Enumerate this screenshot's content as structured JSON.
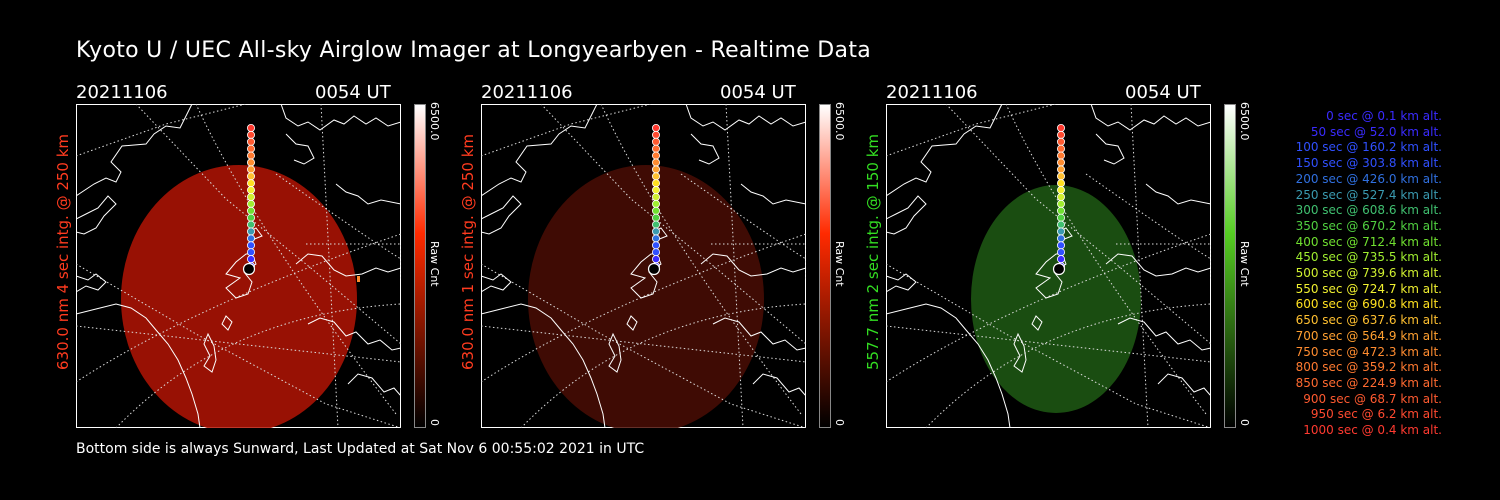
{
  "title": "Kyoto U / UEC All-sky Airglow Imager at Longyearbyen - Realtime Data",
  "footer": "Bottom side is always Sunward, Last Updated at Sat Nov  6 00:55:02 2021 in UTC",
  "panels": [
    {
      "date": "20211106",
      "time": "0054 UT",
      "side_label": "630.0 nm 4 sec intg. @ 250 km",
      "label_color": "#ff3b1f",
      "glow_color": "#b31405",
      "glow_opacity": 0.85,
      "cb_max": "6500.0",
      "cb_min": "0",
      "cb_unit": "Raw Cnt",
      "cb_color": "#ff2a00"
    },
    {
      "date": "20211106",
      "time": "0054 UT",
      "side_label": "630.0 nm 1 sec intg. @ 250 km",
      "label_color": "#ff3b1f",
      "glow_color": "#4a0d05",
      "glow_opacity": 0.85,
      "cb_max": "6500.0",
      "cb_min": "0",
      "cb_unit": "Raw Cnt",
      "cb_color": "#ff2a00"
    },
    {
      "date": "20211106",
      "time": "0054 UT",
      "side_label": "557.7 nm 2 sec intg. @ 150 km",
      "label_color": "#33dd22",
      "glow_color": "#1f5a14",
      "glow_opacity": 0.85,
      "cb_max": "6500.0",
      "cb_min": "0",
      "cb_unit": "Raw Cnt",
      "cb_color": "#55cc22"
    }
  ],
  "legend": [
    {
      "text": "0 sec @    0.1 km alt.",
      "color": "#3a2bff"
    },
    {
      "text": "50 sec @   52.0 km alt.",
      "color": "#3a2bff"
    },
    {
      "text": "100 sec @  160.2 km alt.",
      "color": "#3050ff"
    },
    {
      "text": "150 sec @  303.8 km alt.",
      "color": "#3050ff"
    },
    {
      "text": "200 sec @  426.0 km alt.",
      "color": "#3070e0"
    },
    {
      "text": "250 sec @  527.4 km alt.",
      "color": "#3a9ab0"
    },
    {
      "text": "300 sec @  608.6 km alt.",
      "color": "#40c070"
    },
    {
      "text": "350 sec @  670.2 km alt.",
      "color": "#50d040"
    },
    {
      "text": "400 sec @  712.4 km alt.",
      "color": "#70e030"
    },
    {
      "text": "450 sec @  735.5 km alt.",
      "color": "#a0ee30"
    },
    {
      "text": "500 sec @  739.6 km alt.",
      "color": "#d0f030"
    },
    {
      "text": "550 sec @  724.7 km alt.",
      "color": "#f0f030"
    },
    {
      "text": "600 sec @  690.8 km alt.",
      "color": "#ffe020"
    },
    {
      "text": "650 sec @  637.6 km alt.",
      "color": "#ffc030"
    },
    {
      "text": "700 sec @  564.9 km alt.",
      "color": "#ffa030"
    },
    {
      "text": "750 sec @  472.3 km alt.",
      "color": "#ff8c30"
    },
    {
      "text": "800 sec @  359.2 km alt.",
      "color": "#ff7a30"
    },
    {
      "text": "850 sec @  224.9 km alt.",
      "color": "#ff6a30"
    },
    {
      "text": "900 sec @   68.7 km alt.",
      "color": "#ff5a30"
    },
    {
      "text": "950 sec @    6.2 km alt.",
      "color": "#ff4a30"
    },
    {
      "text": "1000 sec @    0.4 km alt.",
      "color": "#ff3a30"
    }
  ]
}
